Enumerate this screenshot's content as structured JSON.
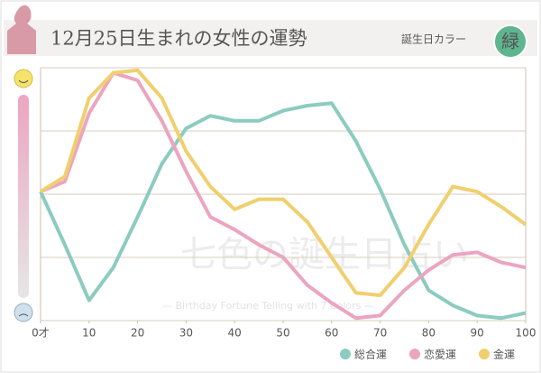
{
  "chart_data": {
    "type": "line",
    "title": "12月25日生まれの女性の運勢",
    "color_label": "誕生日カラー",
    "color_name": "緑",
    "watermark": "七色の誕生日占い",
    "watermark_sub": "— Birthday Fortune Telling with 7 Colors —",
    "x": [
      0,
      5,
      10,
      15,
      20,
      25,
      30,
      35,
      40,
      45,
      50,
      55,
      60,
      65,
      70,
      75,
      80,
      85,
      90,
      95,
      100
    ],
    "series": [
      {
        "name": "総合運",
        "color": "#8ccbc0",
        "values": [
          51,
          30,
          8,
          21,
          41,
          62,
          76,
          81,
          79,
          79,
          83,
          85,
          86,
          71,
          52,
          30,
          12,
          6,
          2,
          1,
          3
        ]
      },
      {
        "name": "恋愛運",
        "color": "#eca5bf",
        "values": [
          51,
          55,
          82,
          98,
          95,
          79,
          59,
          41,
          36,
          30,
          25,
          14,
          7,
          1,
          2,
          12,
          20,
          26,
          27,
          23,
          21
        ]
      },
      {
        "name": "金運",
        "color": "#f0cf6e",
        "values": [
          51,
          57,
          88,
          98,
          99,
          88,
          67,
          53,
          44,
          48,
          48,
          39,
          25,
          11,
          10,
          21,
          38,
          53,
          51,
          45,
          38
        ]
      }
    ],
    "xlim": [
      0,
      100
    ],
    "xticks": [
      {
        "value": 0,
        "label": "0才"
      },
      10,
      20,
      30,
      40,
      50,
      60,
      70,
      80,
      90,
      100
    ],
    "ylim": [
      0,
      100
    ],
    "yticks": [
      0,
      25,
      50,
      75,
      100
    ],
    "grid": true,
    "legend": "bottom-right"
  }
}
